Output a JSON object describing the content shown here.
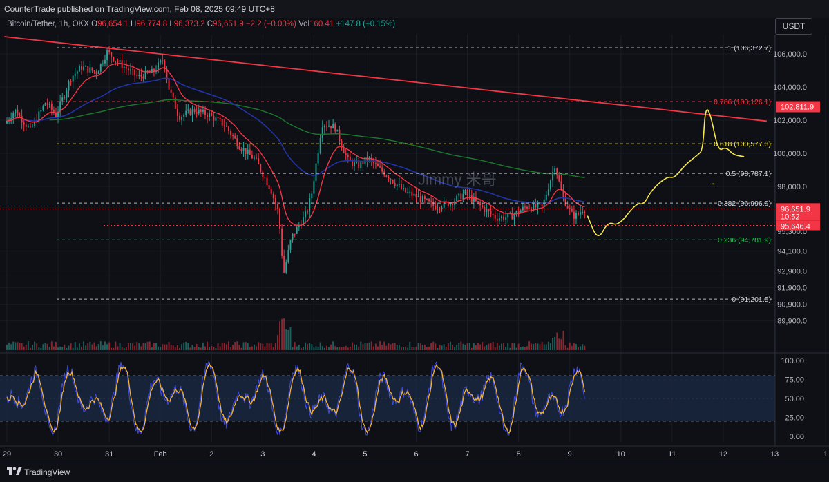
{
  "header": {
    "publisher_line": "CounterTrade published on TradingView.com, Feb 08, 2025 09:49 UTC+8"
  },
  "symbol_info": {
    "name": "Bitcoin/Tether, 1h, OKX",
    "o_label": "O",
    "o": "96,654.1",
    "h_label": "H",
    "h": "96,774.8",
    "l_label": "L",
    "l": "96,373.2",
    "c_label": "C",
    "c": "96,651.9",
    "change": "−2.2 (−0.00%)",
    "vol_label": "Vol",
    "vol": "160.41",
    "vol_change": "+147.8 (+0.15%)"
  },
  "currency_button": "USDT",
  "watermark": "Jimmy 米哥",
  "footer": {
    "brand": "TradingView"
  },
  "colors": {
    "up": "#26a69a",
    "down": "#f23645",
    "trendline": "#f23645",
    "ema_fast": "#f23645",
    "ema_mid": "#2134a8",
    "ema_slow": "#1b7a2e",
    "fib_white": "#d1d4dc",
    "fib_red": "#f23645",
    "fib_yellow": "#f7e94a",
    "fib_green": "#2ec05a",
    "projection": "#f7e94a",
    "stoch_k": "#3d4bdc",
    "stoch_d": "#f5b335"
  },
  "chart_data": {
    "type": "candlestick",
    "timeframe": "1h",
    "x_ticks": [
      "29",
      "30",
      "31",
      "Feb",
      "2",
      "3",
      "4",
      "5",
      "6",
      "7",
      "8",
      "9",
      "10",
      "11",
      "12",
      "13",
      "1"
    ],
    "y_ticks": [
      "106,000.0",
      "104,000.0",
      "102,000.0",
      "100,000.0",
      "98,000.0",
      "94,100.0",
      "92,900.0",
      "91,900.0",
      "90,900.0",
      "89,900.0"
    ],
    "price_path": [
      [
        29.0,
        101800
      ],
      [
        29.2,
        102600
      ],
      [
        29.5,
        101400
      ],
      [
        29.8,
        103100
      ],
      [
        30.0,
        102300
      ],
      [
        30.3,
        104600
      ],
      [
        30.5,
        105200
      ],
      [
        30.8,
        104900
      ],
      [
        31.0,
        106100
      ],
      [
        31.3,
        105300
      ],
      [
        31.6,
        104600
      ],
      [
        31.9,
        104900
      ],
      [
        32.1,
        105700
      ],
      [
        32.2,
        104000
      ],
      [
        32.4,
        102200
      ],
      [
        32.7,
        102600
      ],
      [
        33.0,
        102300
      ],
      [
        33.3,
        101700
      ],
      [
        33.6,
        100400
      ],
      [
        33.9,
        99600
      ],
      [
        34.2,
        97800
      ],
      [
        34.35,
        96400
      ],
      [
        34.45,
        92700
      ],
      [
        34.6,
        94900
      ],
      [
        34.9,
        96400
      ],
      [
        35.0,
        97600
      ],
      [
        35.2,
        101800
      ],
      [
        35.45,
        101600
      ],
      [
        35.7,
        99600
      ],
      [
        35.9,
        99200
      ],
      [
        36.1,
        99700
      ],
      [
        36.3,
        99100
      ],
      [
        36.5,
        98600
      ],
      [
        36.8,
        97700
      ],
      [
        37.1,
        97300
      ],
      [
        37.4,
        96800
      ],
      [
        37.7,
        97000
      ],
      [
        38.0,
        97600
      ],
      [
        38.3,
        96800
      ],
      [
        38.6,
        96100
      ],
      [
        38.9,
        96200
      ],
      [
        39.2,
        96800
      ],
      [
        39.5,
        96700
      ],
      [
        39.75,
        99300
      ],
      [
        39.9,
        97400
      ],
      [
        40.1,
        96200
      ],
      [
        40.2,
        96300
      ],
      [
        40.3,
        96652
      ]
    ],
    "current_price": "96,651.9",
    "countdown": "10:52",
    "trendline_label": "102,811.9",
    "support_price": "95,646.4",
    "fib_levels": [
      {
        "ratio": "1",
        "price": 106372.7,
        "label": "1 (106,372.7)",
        "color": "white"
      },
      {
        "ratio": "0.786",
        "price": 103126.1,
        "label": "0.786 (103,126.1)",
        "color": "red"
      },
      {
        "ratio": "0.618",
        "price": 100577.3,
        "label": "0.618 (100,577.3)",
        "color": "yellow"
      },
      {
        "ratio": "0.5",
        "price": 98787.1,
        "label": "0.5 (98,787.1)",
        "color": "white"
      },
      {
        "ratio": "0.382",
        "price": 96996.9,
        "label": "0.382 (96,996.9)",
        "color": "white"
      },
      {
        "ratio": "0.236",
        "price": 94781.9,
        "label": "0.236 (94,781.9)",
        "color": "green"
      },
      {
        "ratio": "0",
        "price": 91201.5,
        "label": "0 (91,201.5)",
        "color": "white"
      }
    ],
    "projection_path": [
      [
        40.35,
        96200
      ],
      [
        40.55,
        94700
      ],
      [
        40.75,
        95900
      ],
      [
        40.95,
        95600
      ],
      [
        41.3,
        97000
      ],
      [
        41.45,
        96900
      ],
      [
        41.6,
        97800
      ],
      [
        41.9,
        98600
      ],
      [
        42.05,
        98500
      ],
      [
        42.25,
        99300
      ],
      [
        42.5,
        99900
      ],
      [
        42.6,
        100200
      ],
      [
        42.65,
        102800
      ],
      [
        42.75,
        102400
      ],
      [
        42.9,
        100100
      ],
      [
        43.05,
        100400
      ],
      [
        43.2,
        99900
      ],
      [
        43.4,
        99800
      ]
    ],
    "stochastic": {
      "y_ticks": [
        "100.00",
        "75.00",
        "50.00",
        "25.00",
        "0.00"
      ],
      "band_upper": 80,
      "band_lower": 20
    }
  }
}
